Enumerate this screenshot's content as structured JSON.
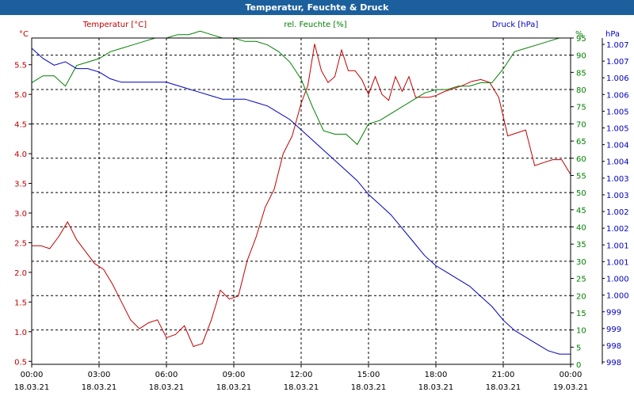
{
  "window": {
    "title": "Temperatur, Feuchte & Druck"
  },
  "chart_data": {
    "type": "line",
    "title": "Temperatur, Feuchte & Druck",
    "x_ticks": [
      {
        "time": "00:00",
        "date": "18.03.21"
      },
      {
        "time": "03:00",
        "date": "18.03.21"
      },
      {
        "time": "06:00",
        "date": "18.03.21"
      },
      {
        "time": "09:00",
        "date": "18.03.21"
      },
      {
        "time": "12:00",
        "date": "18.03.21"
      },
      {
        "time": "15:00",
        "date": "18.03.21"
      },
      {
        "time": "18:00",
        "date": "18.03.21"
      },
      {
        "time": "21:00",
        "date": "18.03.21"
      },
      {
        "time": "00:00",
        "date": "19.03.21"
      }
    ],
    "xlim": [
      0,
      24
    ],
    "grid": true,
    "axes": {
      "temperature": {
        "unit_label": "°C",
        "legend_label": "Temperatur [°C]",
        "ylim": [
          0.45,
          5.95
        ],
        "color": "#c00000",
        "ticks": [
          "0.5",
          "1.0",
          "1.5",
          "2.0",
          "2.5",
          "3.0",
          "3.5",
          "4.0",
          "4.5",
          "5.0",
          "5.5"
        ]
      },
      "humidity": {
        "unit_label": "%",
        "legend_label": "rel. Feuchte [%]",
        "ylim": [
          0,
          95
        ],
        "color": "#008000",
        "ticks": [
          "0",
          "5",
          "10",
          "15",
          "20",
          "25",
          "30",
          "35",
          "40",
          "45",
          "50",
          "55",
          "60",
          "65",
          "70",
          "75",
          "80",
          "85",
          "90",
          "95"
        ]
      },
      "pressure": {
        "unit_label": "hPa",
        "legend_label": "Druck [hPa]",
        "ylim": [
          997.7,
          1007.3
        ],
        "color": "#0000c0",
        "ticks": [
          "998",
          "998",
          "999",
          "999",
          "1.000",
          "1.000",
          "1.001",
          "1.001",
          "1.002",
          "1.002",
          "1.003",
          "1.003",
          "1.004",
          "1.004",
          "1.005",
          "1.005",
          "1.006",
          "1.006",
          "1.007",
          "1.007"
        ]
      }
    },
    "series": [
      {
        "name": "Temperatur [°C]",
        "axis": "temperature",
        "color": "#c00000",
        "x": [
          0,
          0.4,
          0.8,
          1.2,
          1.6,
          2.0,
          2.4,
          2.8,
          3.2,
          3.6,
          4.0,
          4.4,
          4.8,
          5.2,
          5.6,
          6.0,
          6.4,
          6.8,
          7.2,
          7.6,
          8.0,
          8.4,
          8.8,
          9.2,
          9.6,
          10.0,
          10.4,
          10.8,
          11.2,
          11.6,
          12.0,
          12.3,
          12.6,
          12.9,
          13.2,
          13.5,
          13.8,
          14.1,
          14.4,
          14.7,
          15.0,
          15.3,
          15.6,
          15.9,
          16.2,
          16.5,
          16.8,
          17.1,
          17.4,
          17.7,
          18.0,
          18.4,
          18.8,
          19.2,
          19.6,
          20.0,
          20.4,
          20.8,
          21.2,
          21.6,
          22.0,
          22.4,
          22.8,
          23.2,
          23.6,
          24.0
        ],
        "y": [
          2.45,
          2.45,
          2.4,
          2.6,
          2.85,
          2.55,
          2.35,
          2.15,
          2.05,
          1.8,
          1.5,
          1.2,
          1.05,
          1.15,
          1.2,
          0.9,
          0.95,
          1.1,
          0.75,
          0.8,
          1.2,
          1.7,
          1.55,
          1.6,
          2.2,
          2.6,
          3.1,
          3.4,
          4.0,
          4.3,
          4.85,
          5.15,
          5.85,
          5.4,
          5.2,
          5.3,
          5.75,
          5.4,
          5.4,
          5.25,
          5.0,
          5.3,
          5.0,
          4.9,
          5.3,
          5.05,
          5.3,
          4.95,
          4.95,
          4.95,
          4.98,
          5.05,
          5.1,
          5.15,
          5.22,
          5.25,
          5.2,
          4.95,
          4.3,
          4.35,
          4.4,
          3.8,
          3.85,
          3.9,
          3.9,
          3.65
        ]
      },
      {
        "name": "rel. Feuchte [%]",
        "axis": "humidity",
        "color": "#008000",
        "x": [
          0,
          0.5,
          1.0,
          1.5,
          2.0,
          2.5,
          3.0,
          3.5,
          4.0,
          4.5,
          5.0,
          5.5,
          6.0,
          6.5,
          7.0,
          7.5,
          8.0,
          8.5,
          9.0,
          9.5,
          10.0,
          10.5,
          11.0,
          11.5,
          12.0,
          12.5,
          13.0,
          13.5,
          14.0,
          14.5,
          15.0,
          15.5,
          16.0,
          16.5,
          17.0,
          17.5,
          18.0,
          18.5,
          19.0,
          19.5,
          20.0,
          20.5,
          21.0,
          21.5,
          22.0,
          22.5,
          23.0,
          23.5,
          24.0
        ],
        "y": [
          82,
          84,
          84,
          81,
          87,
          88,
          89,
          91,
          92,
          93,
          94,
          95,
          95,
          96,
          96,
          97,
          96,
          95,
          95,
          94,
          94,
          93,
          91,
          88,
          83,
          75,
          68,
          67,
          67,
          64,
          70,
          71,
          73,
          75,
          77,
          79,
          80,
          80,
          81,
          81,
          82,
          82,
          86,
          91,
          92,
          93,
          94,
          95,
          95
        ]
      },
      {
        "name": "Druck [hPa]",
        "axis": "pressure",
        "color": "#0000c0",
        "x": [
          0,
          0.5,
          1.0,
          1.5,
          2.0,
          2.5,
          3.0,
          3.5,
          4.0,
          4.5,
          5.0,
          5.5,
          6.0,
          6.5,
          7.0,
          7.5,
          8.0,
          8.5,
          9.0,
          9.5,
          10.0,
          10.5,
          11.0,
          11.5,
          12.0,
          12.5,
          13.0,
          13.5,
          14.0,
          14.5,
          15.0,
          15.5,
          16.0,
          16.5,
          17.0,
          17.5,
          18.0,
          18.5,
          19.0,
          19.5,
          20.0,
          20.5,
          21.0,
          21.5,
          22.0,
          22.5,
          23.0,
          23.5,
          24.0
        ],
        "y": [
          1007.0,
          1006.7,
          1006.5,
          1006.6,
          1006.4,
          1006.4,
          1006.3,
          1006.1,
          1006.0,
          1006.0,
          1006.0,
          1006.0,
          1006.0,
          1005.9,
          1005.8,
          1005.7,
          1005.6,
          1005.5,
          1005.5,
          1005.5,
          1005.4,
          1005.3,
          1005.1,
          1004.9,
          1004.6,
          1004.3,
          1004.0,
          1003.7,
          1003.4,
          1003.1,
          1002.7,
          1002.4,
          1002.1,
          1001.7,
          1001.3,
          1000.9,
          1000.6,
          1000.4,
          1000.2,
          1000.0,
          999.7,
          999.4,
          999.0,
          998.7,
          998.5,
          998.3,
          998.1,
          998.0,
          998.0
        ]
      }
    ]
  }
}
